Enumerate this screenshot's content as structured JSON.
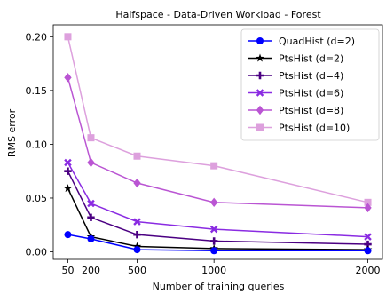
{
  "chart_data": {
    "type": "line",
    "title": "Halfspace - Data-Driven Workload - Forest",
    "xlabel": "Number of training queries",
    "ylabel": "RMS error",
    "x": [
      50,
      200,
      500,
      1000,
      2000
    ],
    "x_ticks": [
      "50",
      "200",
      "500",
      "1000",
      "2000"
    ],
    "y_ticks": [
      "0.00",
      "0.05",
      "0.10",
      "0.15",
      "0.20"
    ],
    "xlim": [
      -45,
      2095
    ],
    "ylim": [
      -0.007,
      0.211
    ],
    "grid": false,
    "legend_position": "top-right",
    "series": [
      {
        "name": "QuadHist (d=2)",
        "color": "#0000ff",
        "marker": "circle",
        "values": [
          0.016,
          0.012,
          0.002,
          0.001,
          0.001
        ]
      },
      {
        "name": "PtsHist (d=2)",
        "color": "#000000",
        "marker": "star",
        "values": [
          0.059,
          0.014,
          0.005,
          0.003,
          0.002
        ]
      },
      {
        "name": "PtsHist (d=4)",
        "color": "#4b0082",
        "marker": "plus",
        "values": [
          0.075,
          0.032,
          0.016,
          0.01,
          0.007
        ]
      },
      {
        "name": "PtsHist (d=6)",
        "color": "#8a2be2",
        "marker": "x",
        "values": [
          0.083,
          0.045,
          0.028,
          0.021,
          0.014
        ]
      },
      {
        "name": "PtsHist (d=8)",
        "color": "#ba55d3",
        "marker": "diamond",
        "values": [
          0.162,
          0.083,
          0.064,
          0.046,
          0.041
        ]
      },
      {
        "name": "PtsHist (d=10)",
        "color": "#dda0dd",
        "marker": "square",
        "values": [
          0.2,
          0.106,
          0.089,
          0.08,
          0.046
        ]
      }
    ]
  }
}
